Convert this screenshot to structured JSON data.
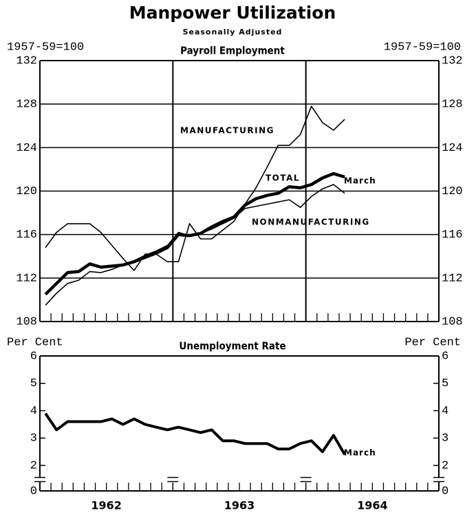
{
  "title": "Manpower Utilization",
  "subtitle": "Seasonally Adjusted",
  "chart_data": [
    {
      "type": "line",
      "title": "Payroll Employment",
      "y_label": "1957-59=100",
      "y2_label": "1957-59=100",
      "xlim": [
        0,
        36
      ],
      "ylim": [
        108,
        132
      ],
      "yticks": [
        108,
        112,
        116,
        120,
        124,
        128,
        132
      ],
      "grid": true,
      "year_lines": [
        12,
        24
      ],
      "minor_xticks": [
        1,
        2,
        3,
        4,
        5,
        6,
        7,
        8,
        9,
        10,
        11,
        13,
        14,
        15,
        16,
        17,
        18,
        19,
        20,
        21,
        22,
        23,
        25,
        26,
        27,
        28,
        29,
        30,
        31,
        32,
        33,
        34,
        35
      ],
      "x": [
        0.5,
        1.5,
        2.5,
        3.5,
        4.5,
        5.5,
        6.5,
        7.5,
        8.5,
        9.5,
        10.5,
        11.5,
        12.5,
        13.5,
        14.5,
        15.5,
        16.5,
        17.5,
        18.5,
        19.5,
        20.5,
        21.5,
        22.5,
        23.5,
        24.5,
        25.5,
        26.5,
        27.5
      ],
      "series": [
        {
          "name": "MANUFACTURING",
          "color": "#000000",
          "line_width": 1.6,
          "values": [
            114.8,
            116.2,
            117.0,
            117.0,
            117.0,
            116.2,
            115.0,
            113.8,
            112.7,
            114.2,
            114.2,
            113.5,
            113.5,
            117.0,
            115.6,
            115.6,
            116.4,
            117.2,
            118.8,
            120.3,
            122.2,
            124.2,
            124.2,
            125.2,
            127.8,
            126.3,
            125.6,
            126.6
          ]
        },
        {
          "name": "TOTAL",
          "color": "#000000",
          "line_width": 4.5,
          "values": [
            110.5,
            111.5,
            112.5,
            112.6,
            113.3,
            113.0,
            113.1,
            113.2,
            113.5,
            113.9,
            114.3,
            114.8,
            116.0,
            115.9,
            116.1,
            116.7,
            117.2,
            117.6,
            118.7,
            119.3,
            119.6,
            119.8,
            120.4,
            120.3,
            120.6,
            121.2,
            121.6,
            121.3
          ]
        },
        {
          "name": "NONMANUFACTURING",
          "color": "#000000",
          "line_width": 1.6,
          "values": [
            109.5,
            110.6,
            111.5,
            111.8,
            112.6,
            112.5,
            112.8,
            113.2,
            113.6,
            114.1,
            114.5,
            115.0,
            116.2,
            115.9,
            116.1,
            116.5,
            117.0,
            117.5,
            118.4,
            118.6,
            118.8,
            119.0,
            119.2,
            118.5,
            119.5,
            120.2,
            120.6,
            119.8
          ]
        }
      ],
      "annotations": [
        "March"
      ]
    },
    {
      "type": "line",
      "title": "Unemployment Rate",
      "y_label": "Per Cent",
      "y2_label": "Per Cent",
      "xlim": [
        0,
        36
      ],
      "ylim": [
        0,
        6
      ],
      "yticks": [
        0,
        2,
        3,
        4,
        5,
        6
      ],
      "axis_break": [
        0,
        2
      ],
      "grid": false,
      "year_lines": [
        12,
        24
      ],
      "minor_xticks": [
        1,
        2,
        3,
        4,
        5,
        6,
        7,
        8,
        9,
        10,
        11,
        13,
        14,
        15,
        16,
        17,
        18,
        19,
        20,
        21,
        22,
        23,
        25,
        26,
        27,
        28,
        29,
        30,
        31,
        32,
        33,
        34,
        35
      ],
      "xticks": [
        {
          "value": 6,
          "label": "1962"
        },
        {
          "value": 18,
          "label": "1963"
        },
        {
          "value": 30,
          "label": "1964"
        }
      ],
      "x": [
        0.5,
        1.5,
        2.5,
        3.5,
        4.5,
        5.5,
        6.5,
        7.5,
        8.5,
        9.5,
        10.5,
        11.5,
        12.5,
        13.5,
        14.5,
        15.5,
        16.5,
        17.5,
        18.5,
        19.5,
        20.5,
        21.5,
        22.5,
        23.5,
        24.5,
        25.5,
        26.5,
        27.5
      ],
      "series": [
        {
          "color": "#000000",
          "line_width": 4,
          "values": [
            3.9,
            3.3,
            3.6,
            3.6,
            3.6,
            3.6,
            3.7,
            3.5,
            3.7,
            3.5,
            3.4,
            3.3,
            3.4,
            3.3,
            3.2,
            3.3,
            2.9,
            2.9,
            2.8,
            2.8,
            2.8,
            2.6,
            2.6,
            2.8,
            2.9,
            2.5,
            3.1,
            2.4
          ]
        }
      ],
      "annotations": [
        "March"
      ]
    }
  ]
}
